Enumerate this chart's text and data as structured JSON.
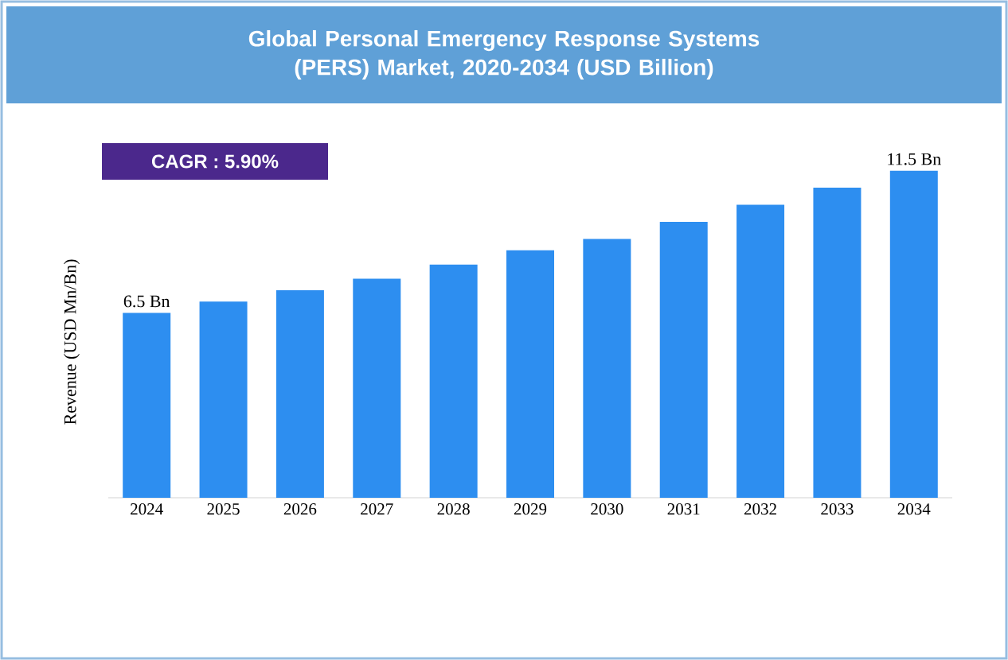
{
  "chart_data": {
    "type": "bar",
    "title": "Global Personal Emergency Response Systems (PERS) Market, 2020-2034 (USD Billion)",
    "ylabel": "Revenue (USD Mn/Bn)",
    "annotations": [
      "CAGR : 5.90%"
    ],
    "categories": [
      "2024",
      "2025",
      "2026",
      "2027",
      "2028",
      "2029",
      "2030",
      "2031",
      "2032",
      "2033",
      "2034"
    ],
    "values": [
      6.5,
      6.9,
      7.3,
      7.7,
      8.2,
      8.7,
      9.1,
      9.7,
      10.3,
      10.9,
      11.5
    ],
    "value_labels": [
      "6.5 Bn",
      null,
      null,
      null,
      null,
      null,
      null,
      null,
      null,
      null,
      "11.5 Bn"
    ],
    "color": "#2d8ef0"
  }
}
